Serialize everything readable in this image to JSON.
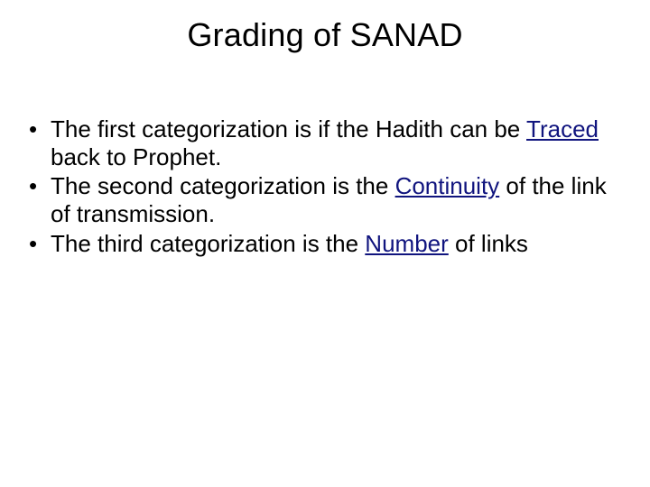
{
  "title": "Grading of SANAD",
  "bullets": [
    {
      "pre": "The first categorization is if the Hadith can be ",
      "keyword": "Traced",
      "post": " back to Prophet.",
      "keyword_underlined": true
    },
    {
      "pre": "The second categorization is the ",
      "keyword": "Continuity",
      "post": " of the link of transmission.",
      "keyword_underlined": true
    },
    {
      "pre": "The third categorization is the ",
      "keyword": "Number",
      "post": " of links",
      "keyword_underlined": true
    }
  ],
  "colors": {
    "background": "#ffffff",
    "text": "#000000",
    "keyword": "#10147e"
  },
  "typography": {
    "title_fontsize": 36,
    "body_fontsize": 26,
    "font_family": "Arial"
  }
}
